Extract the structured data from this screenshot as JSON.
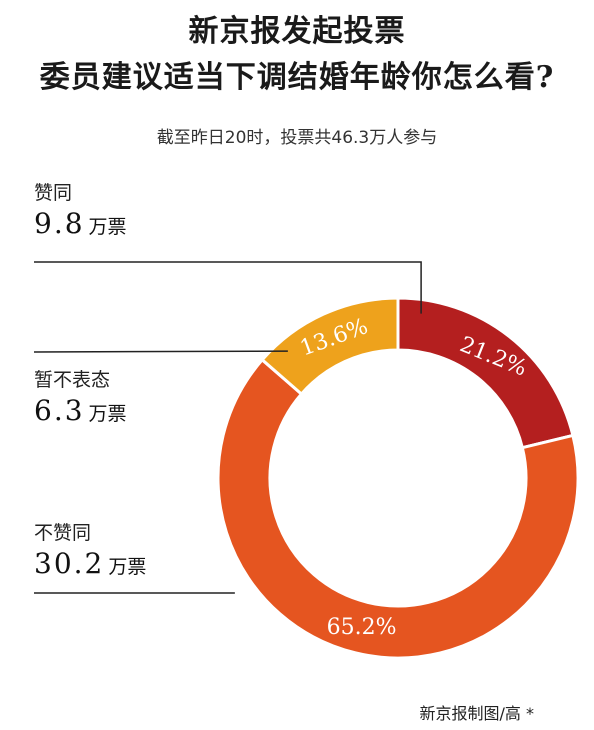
{
  "header": {
    "title_line1": "新京报发起投票",
    "title_line2": "委员建议适当下调结婚年龄你怎么看?",
    "subtitle": "截至昨日20时，投票共46.3万人参与"
  },
  "labels": [
    {
      "name": "赞同",
      "count": "9.8",
      "unit": "万票"
    },
    {
      "name": "暂不表态",
      "count": "6.3",
      "unit": "万票"
    },
    {
      "name": "不赞同",
      "count": "30.2",
      "unit": "万票"
    }
  ],
  "credit": "新京报制图/高 *",
  "chart_data": {
    "type": "pie",
    "variant": "donut",
    "title": "新京报发起投票 委员建议适当下调结婚年龄你怎么看?",
    "subtitle": "截至昨日20时，投票共46.3万人参与",
    "total": "46.3万人",
    "slices": [
      {
        "label": "赞同",
        "votes": 9.8,
        "percent": 21.2,
        "percent_label": "21.2%",
        "color": "#b41f1f"
      },
      {
        "label": "不赞同",
        "votes": 30.2,
        "percent": 65.2,
        "percent_label": "65.2%",
        "color": "#e55520"
      },
      {
        "label": "暂不表态",
        "votes": 6.3,
        "percent": 13.6,
        "percent_label": "13.6%",
        "color": "#eea21c"
      }
    ]
  }
}
